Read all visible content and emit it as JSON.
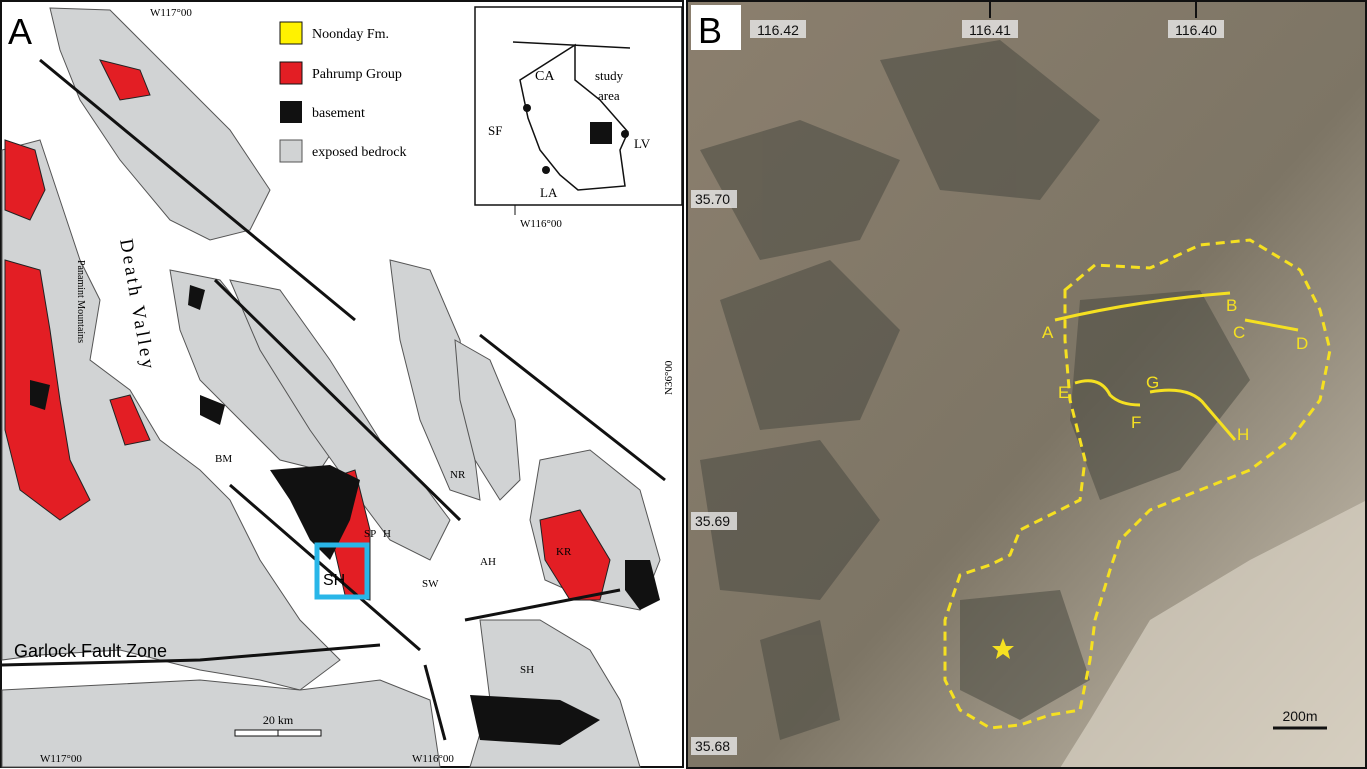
{
  "panel_a": {
    "label": "A",
    "coords": {
      "top_lon": "W117°00",
      "bottom_lon_left": "W117°00",
      "bottom_lon_right": "W116°00",
      "lat": "N36°00",
      "inset_lon": "W116°00"
    },
    "legend": [
      "Noonday Fm.",
      "Pahrump Group",
      "basement",
      "exposed bedrock"
    ],
    "places": {
      "death_valley": "Death Valley",
      "panamint": "Panamint Mountains",
      "bm": "BM",
      "sh_box": "SH",
      "sp": "SP",
      "h": "H",
      "sw": "SW",
      "nr": "NR",
      "ah": "AH",
      "kr": "KR",
      "sh_south": "SH",
      "garlock": "Garlock Fault Zone"
    },
    "scale": "20 km",
    "inset": {
      "ca": "CA",
      "study": "study",
      "area": "area",
      "sf": "SF",
      "lv": "LV",
      "la": "LA"
    }
  },
  "panel_b": {
    "label": "B",
    "lon_ticks": [
      "116.42",
      "116.41",
      "116.40"
    ],
    "lat_ticks": [
      "35.70",
      "35.69",
      "35.68"
    ],
    "line_labels": [
      "A",
      "B",
      "C",
      "D",
      "E",
      "F",
      "G",
      "H"
    ],
    "scale": "200m"
  }
}
